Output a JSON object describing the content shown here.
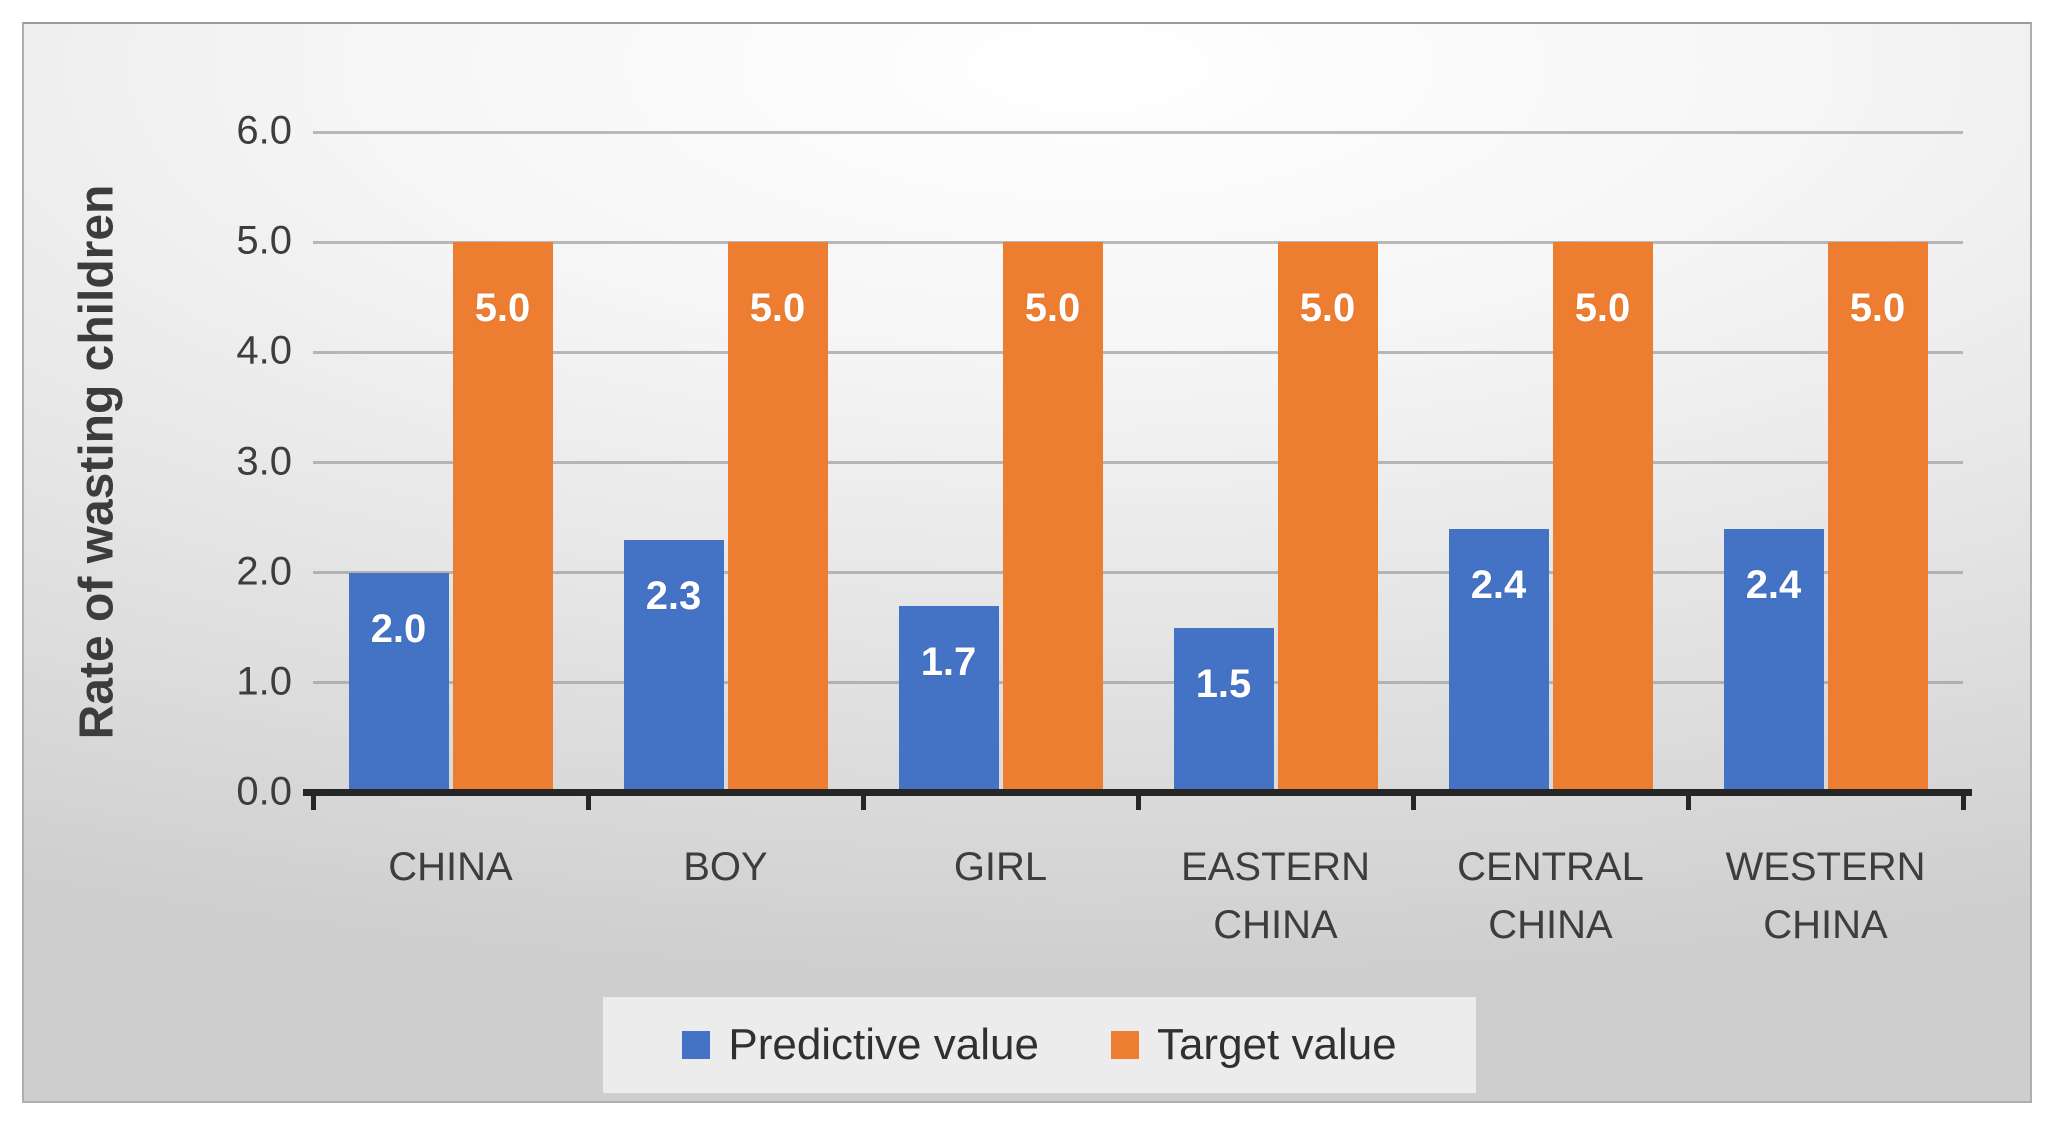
{
  "chart_data": {
    "type": "bar",
    "title": "",
    "xlabel": "",
    "ylabel": "Rate of wasting children",
    "categories": [
      "CHINA",
      "BOY",
      "GIRL",
      "EASTERN CHINA",
      "CENTRAL CHINA",
      "WESTERN CHINA"
    ],
    "series": [
      {
        "name": "Predictive value",
        "color": "#4472C4",
        "values": [
          2.0,
          2.3,
          1.7,
          1.5,
          2.4,
          2.4
        ],
        "labels": [
          "2.0",
          "2.3",
          "1.7",
          "1.5",
          "2.4",
          "2.4"
        ]
      },
      {
        "name": "Target value",
        "color": "#ED7D31",
        "values": [
          5.0,
          5.0,
          5.0,
          5.0,
          5.0,
          5.0
        ],
        "labels": [
          "5.0",
          "5.0",
          "5.0",
          "5.0",
          "5.0",
          "5.0"
        ]
      }
    ],
    "ylim": [
      0.0,
      6.0
    ],
    "yticks": [
      {
        "value": 0,
        "label": "0.0"
      },
      {
        "value": 1,
        "label": "1.0"
      },
      {
        "value": 2,
        "label": "2.0"
      },
      {
        "value": 3,
        "label": "3.0"
      },
      {
        "value": 4,
        "label": "4.0"
      },
      {
        "value": 5,
        "label": "5.0"
      },
      {
        "value": 6,
        "label": "6.0"
      }
    ],
    "grid": true,
    "legend_position": "bottom",
    "data_label_color": "#FFFFFF",
    "gridline_color": "#A0A0A0",
    "axis_line_color": "#262626",
    "tick_label_color": "#3D3D3D"
  }
}
